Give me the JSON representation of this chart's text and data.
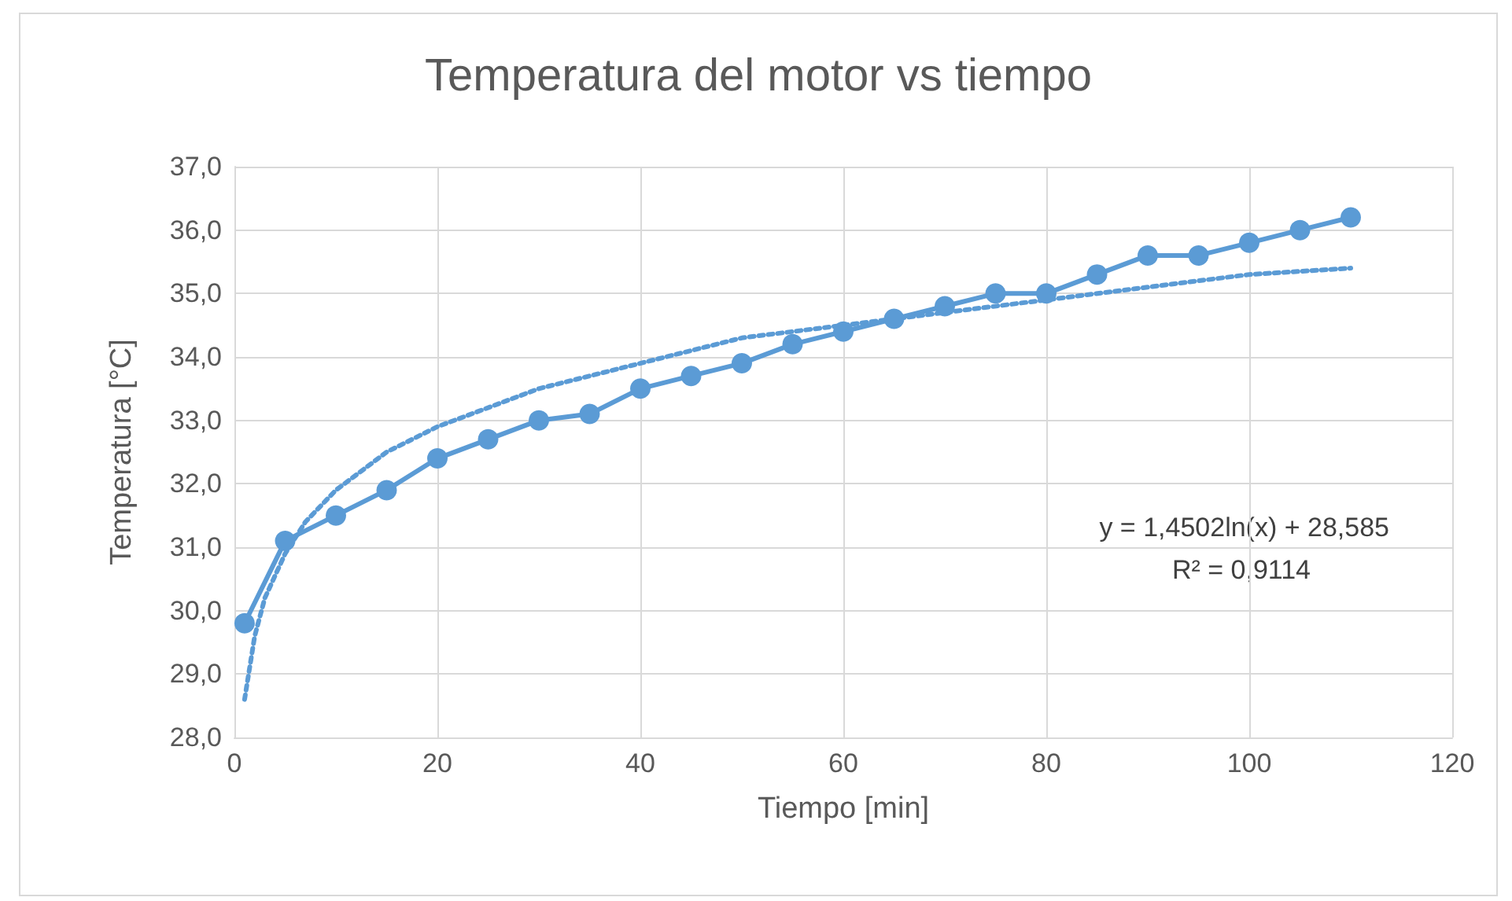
{
  "chart_data": {
    "type": "line",
    "title": "Temperatura del motor vs tiempo",
    "xlabel": "Tiempo [min]",
    "ylabel": "Temperatura [°C]",
    "x": [
      1,
      5,
      10,
      15,
      20,
      25,
      30,
      35,
      40,
      45,
      50,
      55,
      60,
      65,
      70,
      75,
      80,
      85,
      90,
      95,
      100,
      105,
      110
    ],
    "series": [
      {
        "color": "#5b9bd5",
        "marker": "circle",
        "line_style": "solid",
        "values": [
          29.8,
          31.1,
          31.5,
          31.9,
          32.4,
          32.7,
          33.0,
          33.1,
          33.5,
          33.7,
          33.9,
          34.2,
          34.4,
          34.6,
          34.8,
          35.0,
          35.0,
          35.3,
          35.6,
          35.6,
          35.8,
          36.0,
          36.2
        ]
      },
      {
        "type": "line",
        "color": "#5b9bd5",
        "marker": "none",
        "line_style": "dotted",
        "x": [
          1,
          2,
          3,
          5,
          7,
          10,
          15,
          20,
          30,
          40,
          50,
          60,
          70,
          80,
          90,
          100,
          110
        ],
        "values": [
          28.6,
          29.6,
          30.2,
          30.9,
          31.4,
          31.9,
          32.5,
          32.9,
          33.5,
          33.9,
          34.3,
          34.5,
          34.7,
          34.9,
          35.1,
          35.3,
          35.4
        ]
      }
    ],
    "xlim": [
      0,
      120
    ],
    "xticks": [
      0,
      20,
      40,
      60,
      80,
      100,
      120
    ],
    "ylim": [
      28,
      37
    ],
    "yticks": [
      {
        "value": 28,
        "label": "28,0"
      },
      {
        "value": 29,
        "label": "29,0"
      },
      {
        "value": 30,
        "label": "30,0"
      },
      {
        "value": 31,
        "label": "31,0"
      },
      {
        "value": 32,
        "label": "32,0"
      },
      {
        "value": 33,
        "label": "33,0"
      },
      {
        "value": 34,
        "label": "34,0"
      },
      {
        "value": 35,
        "label": "35,0"
      },
      {
        "value": 36,
        "label": "36,0"
      },
      {
        "value": 37,
        "label": "37,0"
      }
    ],
    "grid": true,
    "annotations": [
      "y = 1,4502ln(x) + 28,585",
      "R² = 0,9114"
    ]
  }
}
